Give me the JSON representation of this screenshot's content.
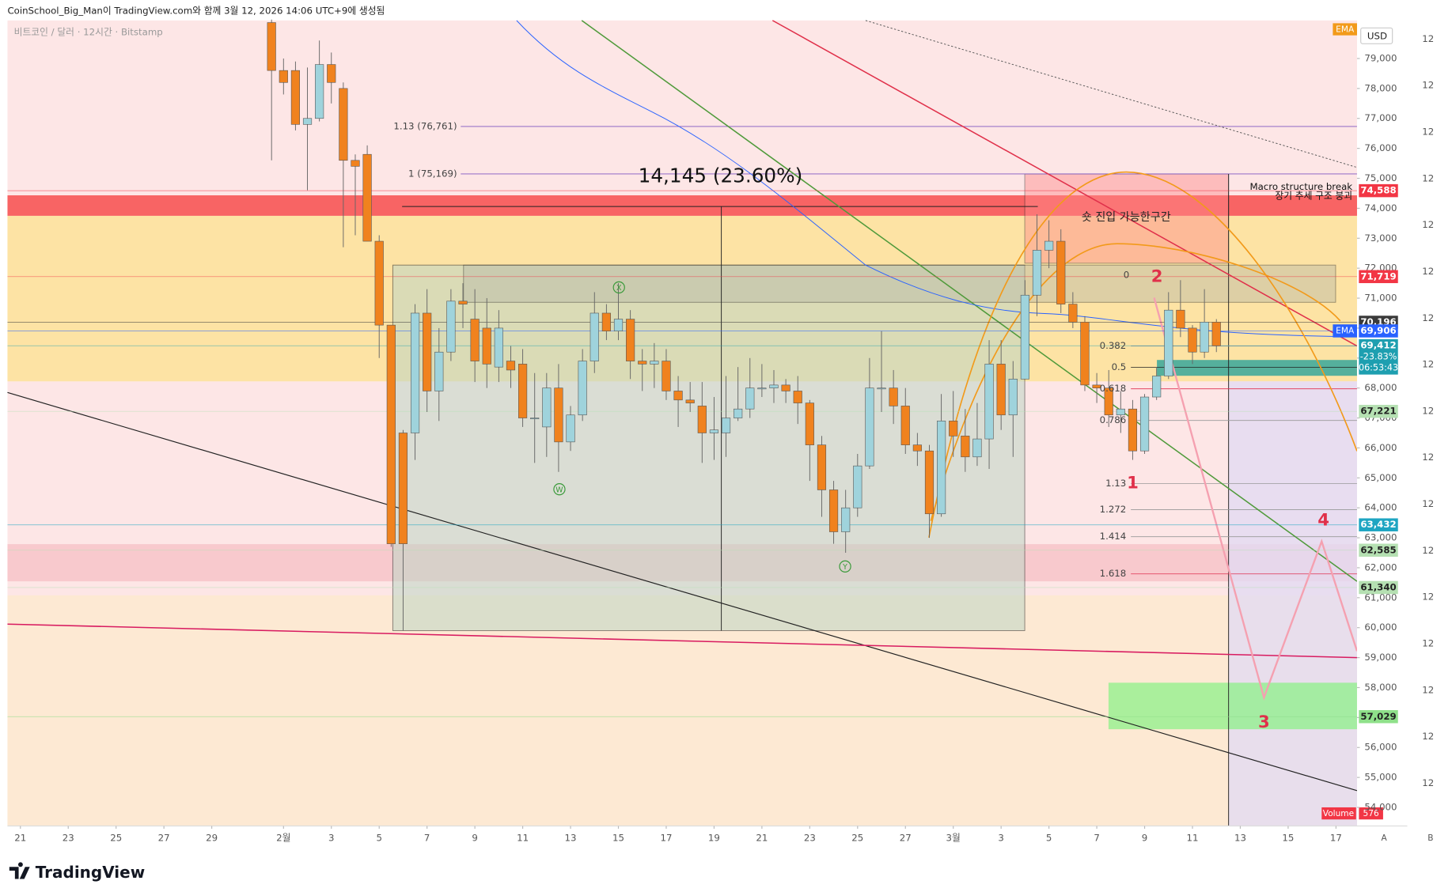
{
  "chart_data": {
    "type": "candlestick",
    "header": "CoinSchool_Big_Man이 TradingView.com와 함께 3월 12, 2026 14:06 UTC+9에 생성됨",
    "subtitle": "비트코인 / 달러 · 12시간 · Bitstamp",
    "currency": "USD",
    "ema_tag": "EMA",
    "up_color": "#9fd3dc",
    "down_color": "#f0821e",
    "x": [
      10.5,
      11,
      11.5,
      12,
      12.5,
      13,
      13.5,
      14,
      14.5,
      15,
      15.5,
      16,
      16.5,
      17,
      17.5,
      18,
      18.5,
      19,
      19.5,
      20,
      20.5,
      21,
      21.5,
      22,
      22.5,
      23,
      23.5,
      24,
      24.5,
      25,
      25.5,
      26,
      26.5,
      27,
      27.5,
      28,
      28.5,
      29,
      29.5,
      30,
      30.5,
      31,
      31.5,
      32,
      32.5,
      33,
      33.5,
      34,
      34.5,
      35,
      35.5,
      36,
      36.5,
      37,
      37.5,
      38,
      38.5,
      39,
      39.5,
      40,
      40.5,
      41,
      41.5,
      42,
      42.5,
      43,
      43.5,
      44,
      44.5,
      45,
      45.5,
      46,
      46.5,
      47,
      47.5,
      48,
      48.5,
      49,
      49.5,
      50
    ],
    "open": [
      80200,
      78600,
      78600,
      76800,
      77000,
      78800,
      78000,
      75600,
      75800,
      72900,
      70100,
      66500,
      66500,
      70500,
      67900,
      69200,
      70900,
      70300,
      70000,
      68700,
      68900,
      68800,
      67000,
      66700,
      68000,
      66200,
      67100,
      68900,
      70500,
      69900,
      70300,
      68900,
      68800,
      68900,
      67900,
      67600,
      67400,
      66500,
      66500,
      67000,
      67300,
      68000,
      68000,
      68100,
      67900,
      67500,
      66100,
      64600,
      63200,
      64000,
      65400,
      68000,
      68000,
      67400,
      66100,
      65900,
      63800,
      66900,
      66400,
      65700,
      66300,
      68800,
      67100,
      68300,
      71100,
      72600,
      72900,
      70800,
      70200,
      68100,
      68000,
      67100,
      67300,
      65900,
      67700,
      68400,
      70600,
      70000,
      69200,
      70200
    ],
    "high": [
      80300,
      79000,
      78900,
      78700,
      79600,
      79200,
      78200,
      75800,
      76100,
      73100,
      70100,
      66600,
      70800,
      71300,
      70000,
      71300,
      71500,
      71300,
      71000,
      70600,
      69400,
      69300,
      68500,
      68500,
      68800,
      67400,
      69300,
      71200,
      70800,
      71500,
      70600,
      69300,
      69500,
      69300,
      68400,
      68200,
      68200,
      67700,
      68400,
      68700,
      69000,
      68800,
      68600,
      68300,
      68400,
      67600,
      66400,
      64900,
      64600,
      65800,
      69000,
      69900,
      68600,
      68000,
      66500,
      66100,
      67800,
      67900,
      67300,
      67500,
      69600,
      69600,
      68900,
      71600,
      73800,
      73600,
      73300,
      71200,
      70400,
      68500,
      68600,
      67900,
      67600,
      67800,
      68700,
      71200,
      71600,
      70100,
      71300,
      70300
    ],
    "low": [
      75600,
      77800,
      76600,
      74600,
      76900,
      77500,
      72700,
      73100,
      72900,
      69000,
      62700,
      59900,
      65600,
      67200,
      66900,
      68900,
      70000,
      68200,
      68000,
      68200,
      68000,
      66700,
      65500,
      65700,
      65200,
      65900,
      66900,
      68500,
      69600,
      69600,
      68300,
      67900,
      68000,
      67600,
      66700,
      67200,
      65500,
      65600,
      65700,
      66900,
      67000,
      67700,
      67500,
      67500,
      66800,
      64900,
      63700,
      62800,
      62500,
      63700,
      65300,
      67200,
      66800,
      65800,
      65400,
      63000,
      63700,
      65700,
      65200,
      65400,
      65300,
      66600,
      65700,
      68300,
      70400,
      72000,
      70500,
      70000,
      67900,
      67500,
      66700,
      66500,
      65600,
      65800,
      67600,
      68300,
      69700,
      68800,
      69000,
      69200
    ],
    "close": [
      78600,
      78200,
      76800,
      77000,
      78800,
      78200,
      75600,
      75400,
      72900,
      70100,
      62800,
      62800,
      70500,
      67900,
      69200,
      70900,
      70800,
      68900,
      68800,
      70000,
      68600,
      67000,
      67000,
      68000,
      66200,
      67100,
      68900,
      70500,
      69900,
      70300,
      68900,
      68800,
      68900,
      67900,
      67600,
      67500,
      66500,
      66600,
      67000,
      67300,
      68000,
      68000,
      68100,
      67900,
      67500,
      66100,
      64600,
      63200,
      64000,
      65400,
      68000,
      68000,
      67400,
      66100,
      65900,
      63800,
      66900,
      66400,
      65700,
      66300,
      68800,
      67100,
      68300,
      71100,
      72600,
      72900,
      70800,
      70200,
      68100,
      68000,
      67100,
      67300,
      65900,
      67700,
      68400,
      70600,
      70000,
      69200,
      70200,
      69412
    ],
    "xlim": [
      -0.54,
      55.88
    ],
    "ylim": [
      53380,
      80270
    ],
    "xticks": [
      {
        "value": 0,
        "label": "21"
      },
      {
        "value": 2,
        "label": "23"
      },
      {
        "value": 4,
        "label": "25"
      },
      {
        "value": 6,
        "label": "27"
      },
      {
        "value": 8,
        "label": "29"
      },
      {
        "value": 11,
        "label": "2월"
      },
      {
        "value": 13,
        "label": "3"
      },
      {
        "value": 15,
        "label": "5"
      },
      {
        "value": 17,
        "label": "7"
      },
      {
        "value": 19,
        "label": "9"
      },
      {
        "value": 21,
        "label": "11"
      },
      {
        "value": 23,
        "label": "13"
      },
      {
        "value": 25,
        "label": "15"
      },
      {
        "value": 27,
        "label": "17"
      },
      {
        "value": 29,
        "label": "19"
      },
      {
        "value": 31,
        "label": "21"
      },
      {
        "value": 33,
        "label": "23"
      },
      {
        "value": 35,
        "label": "25"
      },
      {
        "value": 37,
        "label": "27"
      },
      {
        "value": 39,
        "label": "3월"
      },
      {
        "value": 41,
        "label": "3"
      },
      {
        "value": 43,
        "label": "5"
      },
      {
        "value": 45,
        "label": "7"
      },
      {
        "value": 47,
        "label": "9"
      },
      {
        "value": 49,
        "label": "11"
      },
      {
        "value": 51,
        "label": "13"
      },
      {
        "value": 53,
        "label": "15"
      },
      {
        "value": 55,
        "label": "17"
      }
    ],
    "yticks": [
      {
        "value": 54000,
        "label": "54,000"
      },
      {
        "value": 55000,
        "label": "55,000"
      },
      {
        "value": 56000,
        "label": "56,000"
      },
      {
        "value": 57000,
        "label": "57,000"
      },
      {
        "value": 58000,
        "label": "58,000"
      },
      {
        "value": 59000,
        "label": "59,000"
      },
      {
        "value": 60000,
        "label": "60,000"
      },
      {
        "value": 61000,
        "label": "61,000"
      },
      {
        "value": 62000,
        "label": "62,000"
      },
      {
        "value": 63000,
        "label": "63,000"
      },
      {
        "value": 64000,
        "label": "64,000"
      },
      {
        "value": 65000,
        "label": "65,000"
      },
      {
        "value": 66000,
        "label": "66,000"
      },
      {
        "value": 67000,
        "label": "67,000"
      },
      {
        "value": 68000,
        "label": "68,000"
      },
      {
        "value": 69000,
        "label": "69,000"
      },
      {
        "value": 70000,
        "label": "70,000"
      },
      {
        "value": 71000,
        "label": "71,000"
      },
      {
        "value": 72000,
        "label": "72,000"
      },
      {
        "value": 73000,
        "label": "73,000"
      },
      {
        "value": 74000,
        "label": "74,000"
      },
      {
        "value": 75000,
        "label": "75,000"
      },
      {
        "value": 76000,
        "label": "76,000"
      },
      {
        "value": 77000,
        "label": "77,000"
      },
      {
        "value": 78000,
        "label": "78,000"
      },
      {
        "value": 79000,
        "label": "79,000"
      }
    ],
    "price_labels": [
      {
        "price": 74588,
        "label": "74,588",
        "color": "#f23645",
        "text_color": "#ffffff"
      },
      {
        "price": 71719,
        "label": "71,719",
        "color": "#f23645",
        "text_color": "#ffffff"
      },
      {
        "price": 70196,
        "label": "70,196",
        "color": "#3a3a3a",
        "text_color": "#ffffff"
      },
      {
        "price": 69906,
        "label": "69,906",
        "color": "#2962ff",
        "text_color": "#ffffff",
        "tag": "EMA"
      },
      {
        "price": 69412,
        "label": "69,412",
        "color": "#1e9fb0",
        "text_color": "#ffffff",
        "extra": [
          "-23.83%",
          "06:53:43"
        ]
      },
      {
        "price": 67221,
        "label": "67,221",
        "color": "#b5e0b2",
        "text_color": "#222222"
      },
      {
        "price": 63432,
        "label": "63,432",
        "color": "#1ea5c2",
        "text_color": "#ffffff"
      },
      {
        "price": 62585,
        "label": "62,585",
        "color": "#b5e0b2",
        "text_color": "#222222"
      },
      {
        "price": 61340,
        "label": "61,340",
        "color": "#b5e0b2",
        "text_color": "#222222"
      },
      {
        "price": 57029,
        "label": "57,029",
        "color": "#8fe08a",
        "text_color": "#222222"
      }
    ],
    "fib_top": [
      "1.13 (76,761)",
      "1 (75,169)"
    ],
    "fib_levels": [
      "0",
      "0.382",
      "0.5",
      "0.618",
      "0.786",
      "1.13",
      "1.272",
      "1.414",
      "1.618"
    ],
    "measure_label": "14,145 (23.60%)",
    "macro_break": [
      "Macro structure break",
      "장기 추세 구조 붕괴"
    ],
    "short_zone": "숏 진입 가능한구간",
    "wave_labels": [
      "1",
      "2",
      "3",
      "4"
    ],
    "pattern_labels": [
      "X",
      "W",
      "Y"
    ],
    "volume_label": "Volume",
    "volume_value": 576,
    "side_label": "12",
    "scale_buttons": [
      "A",
      "B"
    ],
    "footer": "TradingView"
  }
}
